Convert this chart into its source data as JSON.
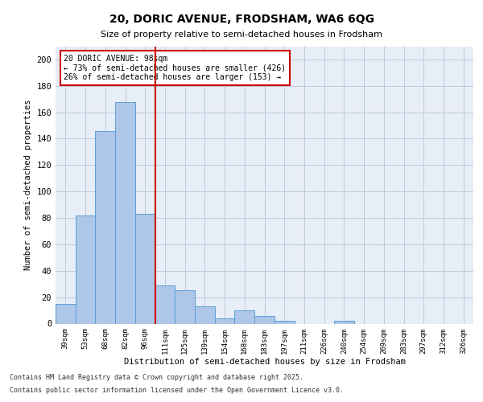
{
  "title1": "20, DORIC AVENUE, FRODSHAM, WA6 6QG",
  "title2": "Size of property relative to semi-detached houses in Frodsham",
  "xlabel": "Distribution of semi-detached houses by size in Frodsham",
  "ylabel": "Number of semi-detached properties",
  "categories": [
    "39sqm",
    "53sqm",
    "68sqm",
    "82sqm",
    "96sqm",
    "111sqm",
    "125sqm",
    "139sqm",
    "154sqm",
    "168sqm",
    "183sqm",
    "197sqm",
    "211sqm",
    "226sqm",
    "240sqm",
    "254sqm",
    "269sqm",
    "283sqm",
    "297sqm",
    "312sqm",
    "326sqm"
  ],
  "values": [
    15,
    82,
    146,
    168,
    83,
    29,
    25,
    13,
    4,
    10,
    6,
    2,
    0,
    0,
    2,
    0,
    0,
    0,
    0,
    0,
    0
  ],
  "bar_color": "#aec6e8",
  "bar_edge_color": "#5a9fd4",
  "vline_x": 4.5,
  "vline_color": "#cc0000",
  "annotation_title": "20 DORIC AVENUE: 98sqm",
  "annotation_line1": "← 73% of semi-detached houses are smaller (426)",
  "annotation_line2": "26% of semi-detached houses are larger (153) →",
  "annotation_box_color": "#ffffff",
  "annotation_box_edge": "#cc0000",
  "ylim": [
    0,
    210
  ],
  "yticks": [
    0,
    20,
    40,
    60,
    80,
    100,
    120,
    140,
    160,
    180,
    200
  ],
  "background_color": "#e8eef8",
  "footer_line1": "Contains HM Land Registry data © Crown copyright and database right 2025.",
  "footer_line2": "Contains public sector information licensed under the Open Government Licence v3.0."
}
